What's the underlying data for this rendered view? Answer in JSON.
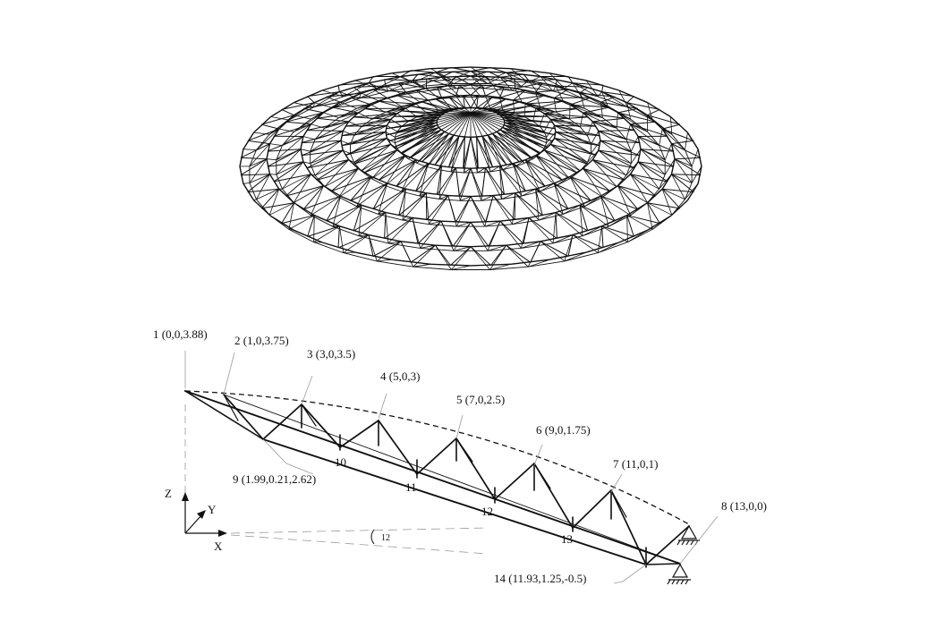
{
  "nodes": [
    {
      "id": "1",
      "label": "1 (0,0,3.88)"
    },
    {
      "id": "2",
      "label": "2 (1,0,3.75)"
    },
    {
      "id": "3",
      "label": "3 (3,0,3.5)"
    },
    {
      "id": "4",
      "label": "4 (5,0,3)"
    },
    {
      "id": "5",
      "label": "5 (7,0,2.5)"
    },
    {
      "id": "6",
      "label": "6 (9,0,1.75)"
    },
    {
      "id": "7",
      "label": "7 (11,0,1)"
    },
    {
      "id": "8",
      "label": "8 (13,0,0)"
    },
    {
      "id": "9",
      "label": "9 (1.99,0.21,2.62)"
    },
    {
      "id": "10",
      "label": "10"
    },
    {
      "id": "11",
      "label": "11"
    },
    {
      "id": "12",
      "label": "12"
    },
    {
      "id": "13",
      "label": "13"
    },
    {
      "id": "14",
      "label": "14 (11.93,1.25,-0.5)"
    }
  ],
  "axes": {
    "z": "Z",
    "y": "Y",
    "x": "X"
  },
  "angle_label": "12",
  "colors": {
    "stroke": "#111111",
    "leader": "#9a9a9a",
    "background": "#ffffff"
  }
}
